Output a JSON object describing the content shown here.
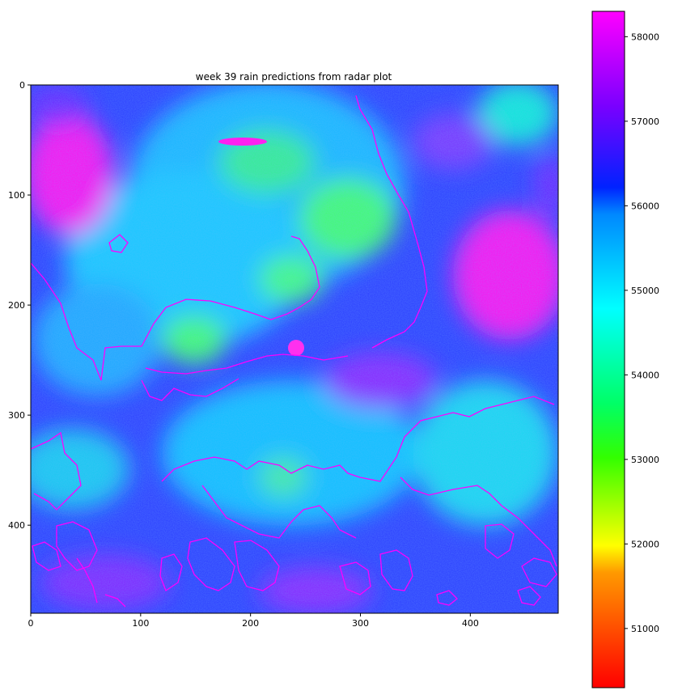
{
  "chart_data": {
    "type": "heatmap",
    "title": "week 39 rain predictions from radar plot",
    "xlabel": "",
    "ylabel": "",
    "xlim": [
      0,
      480
    ],
    "ylim": [
      480,
      0
    ],
    "x_ticks": [
      0,
      100,
      200,
      300,
      400
    ],
    "y_ticks": [
      0,
      100,
      200,
      300,
      400
    ],
    "colorbar": {
      "colormap": "hsv",
      "range": [
        50300,
        58300
      ],
      "ticks": [
        51000,
        52000,
        53000,
        54000,
        55000,
        56000,
        57000,
        58000
      ],
      "colors": [
        "#ff0000",
        "#ff8000",
        "#ffff00",
        "#00ff00",
        "#00ffff",
        "#0040ff",
        "#8000ff",
        "#ff00ff"
      ]
    },
    "grid": false,
    "overlay_contour_color": "#ff00ff"
  }
}
